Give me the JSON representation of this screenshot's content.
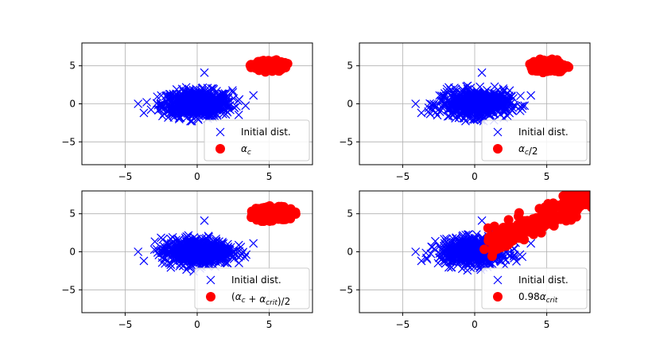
{
  "chart_data": [
    {
      "type": "scatter",
      "xlim": [
        -8,
        8
      ],
      "ylim": [
        -8,
        8
      ],
      "xticks": [
        -5,
        0,
        5
      ],
      "yticks": [
        -5,
        0,
        5
      ],
      "grid": true,
      "legend_location": "lower-right",
      "series": [
        {
          "name": "Initial dist.",
          "marker": "x",
          "color": "#0000ff",
          "cluster": {
            "center": [
              0,
              0
            ],
            "spread": [
              2.2,
              1.4
            ],
            "extremes": [
              [
                -4.1,
                0
              ],
              [
                0.5,
                4.1
              ],
              [
                -3.7,
                -1.2
              ],
              [
                3.9,
                1.1
              ]
            ]
          }
        },
        {
          "name": "α_c",
          "marker": "o",
          "color": "#ff0000",
          "cluster": {
            "center": [
              5.0,
              5.0
            ],
            "spread": [
              1.3,
              0.8
            ]
          }
        }
      ]
    },
    {
      "type": "scatter",
      "xlim": [
        -8,
        8
      ],
      "ylim": [
        -8,
        8
      ],
      "xticks": [
        -5,
        0,
        5
      ],
      "yticks": [
        -5,
        0,
        5
      ],
      "grid": true,
      "legend_location": "lower-right",
      "series": [
        {
          "name": "Initial dist.",
          "marker": "x",
          "color": "#0000ff",
          "cluster": {
            "center": [
              0,
              0
            ],
            "spread": [
              2.2,
              1.4
            ]
          }
        },
        {
          "name": "α_c/2",
          "marker": "o",
          "color": "#ff0000",
          "cluster": {
            "center": [
              5.1,
              5.0
            ],
            "spread": [
              1.4,
              0.9
            ]
          }
        }
      ]
    },
    {
      "type": "scatter",
      "xlim": [
        -8,
        8
      ],
      "ylim": [
        -8,
        8
      ],
      "xticks": [
        -5,
        0,
        5
      ],
      "yticks": [
        -5,
        0,
        5
      ],
      "grid": true,
      "legend_location": "lower-right",
      "series": [
        {
          "name": "Initial dist.",
          "marker": "x",
          "color": "#0000ff",
          "cluster": {
            "center": [
              0,
              0
            ],
            "spread": [
              2.2,
              1.4
            ]
          }
        },
        {
          "name": "(α_c + α_crit)/2",
          "marker": "o",
          "color": "#ff0000",
          "cluster": {
            "center": [
              5.2,
              5.0
            ],
            "spread": [
              1.7,
              1.1
            ]
          }
        }
      ]
    },
    {
      "type": "scatter",
      "xlim": [
        -8,
        8
      ],
      "ylim": [
        -8,
        8
      ],
      "xticks": [
        -5,
        0,
        5
      ],
      "yticks": [
        -5,
        0,
        5
      ],
      "grid": true,
      "legend_location": "lower-right",
      "series": [
        {
          "name": "Initial dist.",
          "marker": "x",
          "color": "#0000ff",
          "cluster": {
            "center": [
              0,
              0
            ],
            "spread": [
              2.2,
              1.4
            ]
          }
        },
        {
          "name": "0.98α_crit",
          "marker": "o",
          "color": "#ff0000",
          "cluster": {
            "center": [
              4.6,
              4.0
            ],
            "spread": [
              3.2,
              0.8
            ],
            "direction": [
              1,
              1
            ],
            "range_x": [
              0.9,
              8
            ]
          }
        }
      ]
    }
  ],
  "legends": [
    {
      "entry1": "Initial dist.",
      "entry2_base": "α",
      "entry2_sub": "c",
      "entry2_suffix": ""
    },
    {
      "entry1": "Initial dist.",
      "entry2_base": "α",
      "entry2_sub": "c",
      "entry2_suffix": "/2"
    },
    {
      "entry1": "Initial dist.",
      "entry2_html": "(α_c + α_crit)/2"
    },
    {
      "entry1": "Initial dist.",
      "entry2_html": "0.98α_crit"
    }
  ]
}
